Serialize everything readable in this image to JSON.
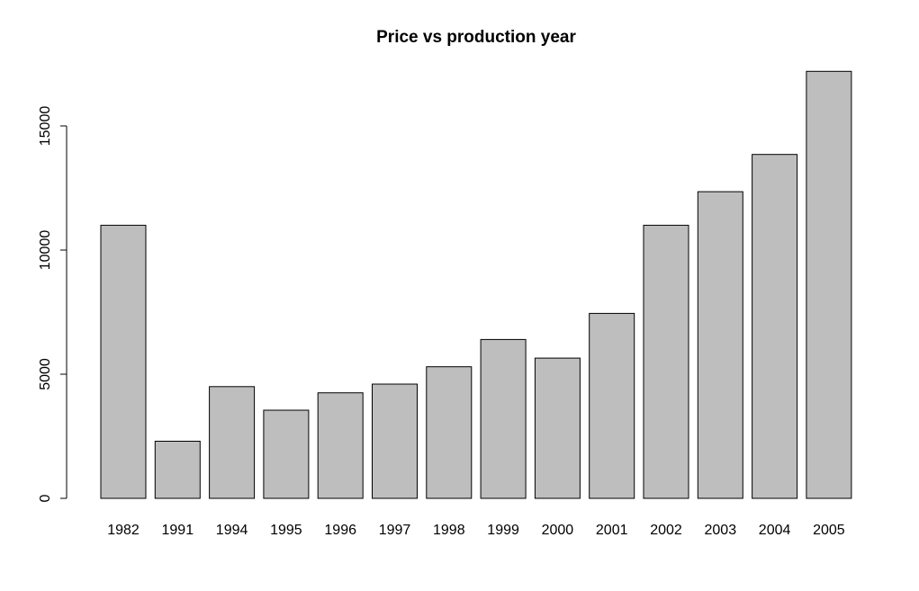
{
  "chart_data": {
    "type": "bar",
    "title": "Price vs production year",
    "xlabel": "",
    "ylabel": "",
    "categories": [
      "1982",
      "1991",
      "1994",
      "1995",
      "1996",
      "1997",
      "1998",
      "1999",
      "2000",
      "2001",
      "2002",
      "2003",
      "2004",
      "2005"
    ],
    "values": [
      11000,
      2300,
      4500,
      3550,
      4250,
      4600,
      5300,
      6400,
      5650,
      7450,
      11000,
      12350,
      13850,
      17200
    ],
    "ylim": [
      0,
      17200
    ],
    "yticks": [
      0,
      5000,
      10000,
      15000
    ],
    "ytick_labels": [
      "0",
      "5000",
      "10000",
      "15000"
    ],
    "grid": false,
    "legend": "none",
    "bar_color": "#bebebe",
    "edge_color": "#000000"
  }
}
